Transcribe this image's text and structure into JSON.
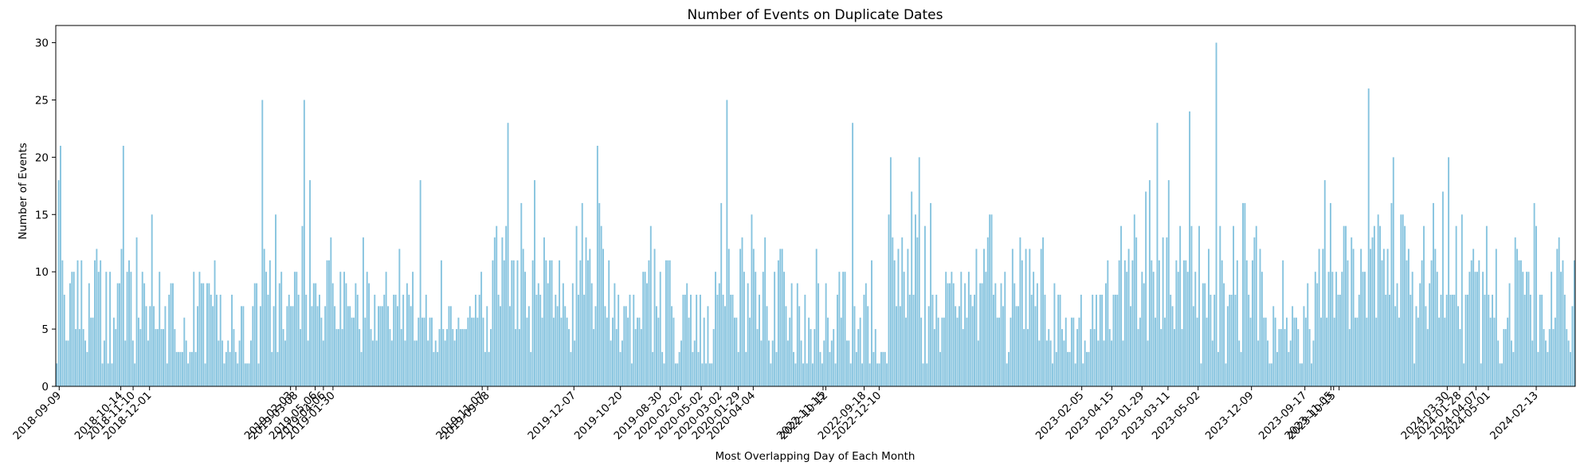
{
  "chart_data": {
    "type": "bar",
    "title": "Number of Events on Duplicate Dates",
    "xlabel": "Most Overlapping Day of Each Month",
    "ylabel": "Number of Events",
    "ylim": [
      0,
      31.5
    ],
    "yticks": [
      0,
      5,
      10,
      15,
      20,
      25,
      30
    ],
    "grid": false,
    "bar_color": "#87c4df",
    "n_categories": 720,
    "values": [
      2,
      18,
      21,
      11,
      8,
      4,
      4,
      9,
      10,
      10,
      5,
      11,
      5,
      11,
      5,
      4,
      3,
      9,
      6,
      6,
      11,
      12,
      10,
      11,
      2,
      4,
      10,
      2,
      10,
      2,
      6,
      5,
      9,
      9,
      12,
      21,
      4,
      10,
      11,
      10,
      4,
      2,
      13,
      6,
      5,
      10,
      9,
      7,
      4,
      7,
      15,
      7,
      5,
      5,
      10,
      5,
      5,
      7,
      2,
      8,
      9,
      9,
      5,
      3,
      3,
      3,
      3,
      6,
      4,
      2,
      3,
      3,
      10,
      3,
      7,
      10,
      9,
      9,
      2,
      9,
      9,
      8,
      7,
      11,
      8,
      4,
      8,
      4,
      2,
      3,
      4,
      3,
      8,
      5,
      3,
      2,
      4,
      7,
      7,
      2,
      2,
      2,
      4,
      7,
      9,
      9,
      2,
      7,
      25,
      12,
      10,
      8,
      11,
      3,
      7,
      15,
      3,
      9,
      10,
      5,
      4,
      7,
      8,
      7,
      7,
      10,
      10,
      8,
      5,
      14,
      25,
      8,
      4,
      18,
      7,
      9,
      9,
      7,
      8,
      6,
      4,
      7,
      11,
      11,
      13,
      9,
      7,
      5,
      5,
      10,
      5,
      10,
      9,
      7,
      7,
      6,
      6,
      9,
      8,
      5,
      3,
      13,
      6,
      10,
      9,
      5,
      4,
      8,
      4,
      7,
      7,
      7,
      8,
      10,
      7,
      5,
      4,
      8,
      8,
      7,
      12,
      5,
      8,
      4,
      9,
      8,
      7,
      10,
      4,
      4,
      6,
      18,
      6,
      6,
      8,
      4,
      6,
      6,
      3,
      4,
      3,
      5,
      11,
      5,
      4,
      5,
      7,
      7,
      5,
      4,
      5,
      6,
      5,
      5,
      5,
      5,
      6,
      7,
      6,
      6,
      8,
      6,
      8,
      10,
      6,
      3,
      7,
      3,
      5,
      11,
      13,
      14,
      8,
      7,
      13,
      11,
      14,
      23,
      7,
      11,
      11,
      5,
      11,
      5,
      16,
      12,
      10,
      6,
      7,
      3,
      11,
      18,
      8,
      9,
      8,
      6,
      13,
      11,
      9,
      11,
      11,
      6,
      8,
      7,
      11,
      6,
      9,
      7,
      6,
      5,
      3,
      9,
      4,
      14,
      8,
      11,
      16,
      8,
      13,
      11,
      12,
      9,
      5,
      7,
      21,
      16,
      14,
      12,
      7,
      6,
      11,
      4,
      6,
      9,
      5,
      8,
      3,
      4,
      7,
      7,
      6,
      8,
      2,
      8,
      5,
      6,
      6,
      5,
      10,
      10,
      9,
      11,
      14,
      3,
      12,
      7,
      6,
      10,
      3,
      2,
      11,
      11,
      11,
      7,
      6,
      2,
      2,
      3,
      4,
      8,
      8,
      9,
      6,
      8,
      3,
      4,
      8,
      3,
      8,
      2,
      6,
      2,
      7,
      2,
      2,
      5,
      10,
      8,
      9,
      16,
      8,
      7,
      25,
      12,
      8,
      8,
      6,
      6,
      3,
      12,
      13,
      10,
      3,
      9,
      6,
      15,
      12,
      10,
      5,
      8,
      4,
      10,
      13,
      7,
      4,
      2,
      4,
      10,
      3,
      11,
      12,
      12,
      10,
      7,
      4,
      6,
      9,
      3,
      2,
      9,
      7,
      4,
      2,
      8,
      2,
      6,
      5,
      2,
      5,
      12,
      9,
      3,
      2,
      4,
      9,
      6,
      3,
      4,
      5,
      2,
      8,
      10,
      6,
      10,
      10,
      4,
      4,
      2,
      23,
      7,
      3,
      5,
      6,
      2,
      8,
      9,
      7,
      2,
      11,
      3,
      5,
      2,
      2,
      3,
      3,
      3,
      2,
      15,
      20,
      13,
      11,
      7,
      12,
      7,
      13,
      10,
      6,
      12,
      8,
      17,
      8,
      15,
      13,
      20,
      6,
      2,
      14,
      2,
      7,
      16,
      8,
      5,
      8,
      6,
      3,
      6,
      6,
      10,
      9,
      9,
      10,
      9,
      7,
      6,
      7,
      10,
      5,
      9,
      6,
      10,
      8,
      7,
      8,
      12,
      4,
      9,
      9,
      12,
      10,
      13,
      15,
      15,
      8,
      9,
      6,
      6,
      9,
      7,
      10,
      2,
      3,
      6,
      12,
      9,
      7,
      7,
      13,
      11,
      5,
      12,
      5,
      12,
      8,
      10,
      7,
      9,
      4,
      12,
      13,
      8,
      4,
      5,
      4,
      2,
      9,
      3,
      8,
      8,
      5,
      4,
      6,
      3,
      3,
      6,
      6,
      2,
      5,
      6,
      8,
      2,
      4,
      3,
      3,
      5,
      8,
      5,
      8,
      4,
      8,
      8,
      4,
      9,
      11,
      5,
      4,
      8,
      8,
      8,
      11,
      14,
      4,
      11,
      10,
      12,
      7,
      11,
      15,
      13,
      5,
      6,
      10,
      9,
      17,
      4,
      18,
      11,
      10,
      6,
      23,
      11,
      5,
      13,
      6,
      13,
      18,
      8,
      7,
      5,
      11,
      10,
      14,
      5,
      11,
      11,
      10,
      24,
      14,
      7,
      10,
      6,
      14,
      2,
      9,
      9,
      6,
      12,
      8,
      4,
      8,
      30,
      3,
      14,
      11,
      9,
      2,
      7,
      8,
      8,
      14,
      8,
      11,
      4,
      3,
      16,
      16,
      11,
      8,
      6,
      11,
      13,
      14,
      4,
      12,
      10,
      6,
      6,
      4,
      2,
      2,
      7,
      6,
      3,
      5,
      5,
      11,
      5,
      6,
      3,
      4,
      7,
      6,
      6,
      5,
      2,
      2,
      7,
      6,
      9,
      5,
      2,
      4,
      10,
      9,
      12,
      6,
      12,
      18,
      6,
      10,
      16,
      10,
      6,
      10,
      8,
      8,
      10,
      14,
      14,
      11,
      5,
      13,
      12,
      6,
      6,
      8,
      12,
      10,
      10,
      6,
      26,
      12,
      13,
      14,
      6,
      15,
      14,
      11,
      12,
      8,
      12,
      8,
      16,
      20,
      7,
      9,
      6,
      15,
      15,
      14,
      11,
      12,
      8,
      10,
      2,
      7,
      6,
      9,
      11,
      14,
      7,
      5,
      9,
      11,
      16,
      12,
      10,
      6,
      8,
      17,
      6,
      8,
      20,
      8,
      8,
      8,
      14,
      7,
      5,
      15,
      2,
      8,
      8,
      10,
      11,
      12,
      10,
      10,
      11,
      2,
      10,
      8,
      14,
      8,
      6,
      8,
      6,
      12,
      4,
      2,
      2,
      5,
      5,
      6,
      9,
      4,
      3,
      13,
      12,
      11,
      11,
      10,
      8,
      10,
      10,
      8,
      4,
      16,
      14,
      3,
      8,
      8,
      5,
      4,
      3,
      5,
      10,
      5,
      6,
      12,
      13,
      10,
      11,
      8,
      5,
      4,
      3,
      7,
      11
    ],
    "x_tick_labels": [
      {
        "index": 2,
        "label": "2018-09-09"
      },
      {
        "index": 47,
        "label": "2018-10-14"
      },
      {
        "index": 56,
        "label": "2018-11-10"
      },
      {
        "index": 68,
        "label": "2018-12-01"
      },
      {
        "index": 171,
        "label": "2019-02-03"
      },
      {
        "index": 175,
        "label": "2019-03-08"
      },
      {
        "index": 189,
        "label": "2019-05-06"
      },
      {
        "index": 195,
        "label": "2019-04-06"
      },
      {
        "index": 202,
        "label": "2019-01-30"
      },
      {
        "index": 311,
        "label": "2019-11-07"
      },
      {
        "index": 315,
        "label": "2019-09-08"
      },
      {
        "index": 378,
        "label": "2019-12-07"
      },
      {
        "index": 412,
        "label": "2019-10-20"
      },
      {
        "index": 441,
        "label": "2019-08-30"
      },
      {
        "index": 456,
        "label": "2020-02-02"
      },
      {
        "index": 471,
        "label": "2020-05-02"
      },
      {
        "index": 485,
        "label": "2020-03-02"
      },
      {
        "index": 498,
        "label": "2020-01-29"
      },
      {
        "index": 509,
        "label": "2020-04-04"
      },
      {
        "index": 560,
        "label": "2022-11-15"
      },
      {
        "index": 562,
        "label": "2022-10-12"
      },
      {
        "index": 590,
        "label": "2022-09-18"
      },
      {
        "index": 601,
        "label": "2022-12-10"
      },
      {
        "index": 749,
        "label": "2023-02-05"
      },
      {
        "index": 771,
        "label": "2023-04-15"
      },
      {
        "index": 793,
        "label": "2023-01-29"
      },
      {
        "index": 812,
        "label": "2023-03-11"
      },
      {
        "index": 834,
        "label": "2023-05-02"
      },
      {
        "index": 873,
        "label": "2023-12-09"
      },
      {
        "index": 912,
        "label": "2023-09-17"
      },
      {
        "index": 931,
        "label": "2023-11-05"
      },
      {
        "index": 933,
        "label": "2023-10-15"
      },
      {
        "index": 937,
        "label": ""
      },
      {
        "index": 1016,
        "label": "2024-03-30"
      },
      {
        "index": 1025,
        "label": "2024-01-28"
      },
      {
        "index": 1037,
        "label": "2024-04-07"
      },
      {
        "index": 1046,
        "label": "2024-05-01"
      },
      {
        "index": 1081,
        "label": "2024-02-13"
      }
    ],
    "x_tick_span": 1110
  }
}
